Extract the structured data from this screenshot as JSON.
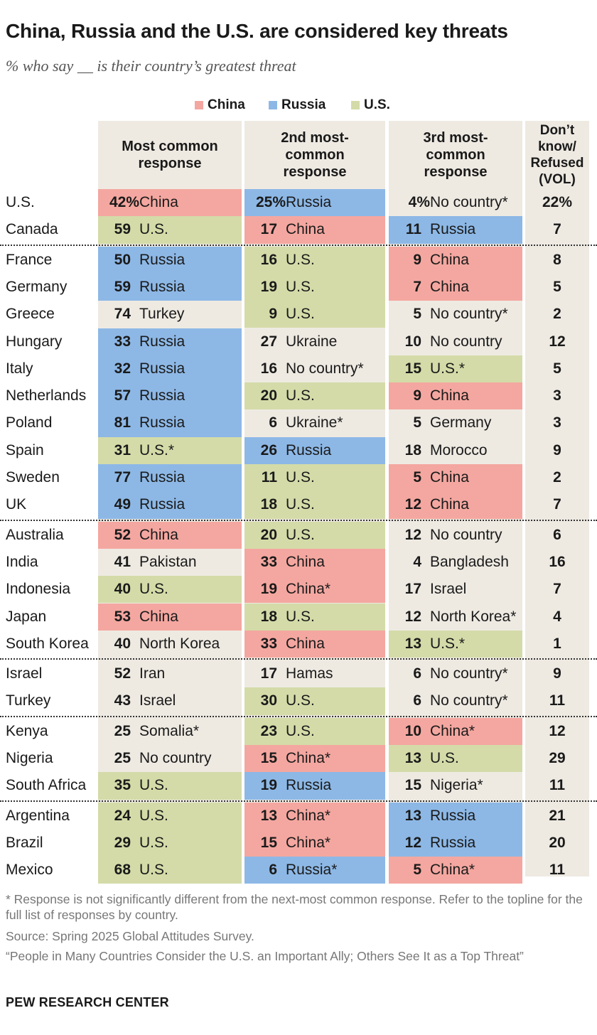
{
  "header": {
    "title": "China, Russia and the U.S. are considered key threats",
    "subtitle": "% who say __ is their country’s greatest threat"
  },
  "legend": [
    {
      "label": "China",
      "color": "#f4a7a0"
    },
    {
      "label": "Russia",
      "color": "#8db8e6"
    },
    {
      "label": "U.S.",
      "color": "#d4dba8"
    }
  ],
  "colors": {
    "China": "#f4a7a0",
    "Russia": "#8db8e6",
    "U.S.": "#d4dba8",
    "neutral": "#eeeae2"
  },
  "chart_data": {
    "type": "table",
    "columns": [
      "Most common response",
      "2nd most-common response",
      "3rd most-common response",
      "Don’t know/ Refused (VOL)"
    ],
    "column_headers": [
      "Most common\nresponse",
      "2nd most-\ncommon\nresponse",
      "3rd most-\ncommon\nresponse",
      "Don’t\nknow/\nRefused\n(VOL)"
    ],
    "rows": [
      {
        "country": "U.S.",
        "r1": [
          "42%",
          "China"
        ],
        "r2": [
          "25%",
          "Russia"
        ],
        "r3": [
          "4%",
          "No country*"
        ],
        "dk": "22%"
      },
      {
        "country": "Canada",
        "r1": [
          "59",
          "U.S."
        ],
        "r2": [
          "17",
          "China"
        ],
        "r3": [
          "11",
          "Russia"
        ],
        "dk": "7"
      },
      {
        "country": "France",
        "r1": [
          "50",
          "Russia"
        ],
        "r2": [
          "16",
          "U.S."
        ],
        "r3": [
          "9",
          "China"
        ],
        "dk": "8"
      },
      {
        "country": "Germany",
        "r1": [
          "59",
          "Russia"
        ],
        "r2": [
          "19",
          "U.S."
        ],
        "r3": [
          "7",
          "China"
        ],
        "dk": "5"
      },
      {
        "country": "Greece",
        "r1": [
          "74",
          "Turkey"
        ],
        "r2": [
          "9",
          "U.S."
        ],
        "r3": [
          "5",
          "No country*"
        ],
        "dk": "2"
      },
      {
        "country": "Hungary",
        "r1": [
          "33",
          "Russia"
        ],
        "r2": [
          "27",
          "Ukraine"
        ],
        "r3": [
          "10",
          "No country"
        ],
        "dk": "12"
      },
      {
        "country": "Italy",
        "r1": [
          "32",
          "Russia"
        ],
        "r2": [
          "16",
          "No country*"
        ],
        "r3": [
          "15",
          "U.S.*"
        ],
        "dk": "5"
      },
      {
        "country": "Netherlands",
        "r1": [
          "57",
          "Russia"
        ],
        "r2": [
          "20",
          "U.S."
        ],
        "r3": [
          "9",
          "China"
        ],
        "dk": "3"
      },
      {
        "country": "Poland",
        "r1": [
          "81",
          "Russia"
        ],
        "r2": [
          "6",
          "Ukraine*"
        ],
        "r3": [
          "5",
          "Germany"
        ],
        "dk": "3"
      },
      {
        "country": "Spain",
        "r1": [
          "31",
          "U.S.*"
        ],
        "r2": [
          "26",
          "Russia"
        ],
        "r3": [
          "18",
          "Morocco"
        ],
        "dk": "9"
      },
      {
        "country": "Sweden",
        "r1": [
          "77",
          "Russia"
        ],
        "r2": [
          "11",
          "U.S."
        ],
        "r3": [
          "5",
          "China"
        ],
        "dk": "2"
      },
      {
        "country": "UK",
        "r1": [
          "49",
          "Russia"
        ],
        "r2": [
          "18",
          "U.S."
        ],
        "r3": [
          "12",
          "China"
        ],
        "dk": "7"
      },
      {
        "country": "Australia",
        "r1": [
          "52",
          "China"
        ],
        "r2": [
          "20",
          "U.S."
        ],
        "r3": [
          "12",
          "No country"
        ],
        "dk": "6"
      },
      {
        "country": "India",
        "r1": [
          "41",
          "Pakistan"
        ],
        "r2": [
          "33",
          "China"
        ],
        "r3": [
          "4",
          "Bangladesh"
        ],
        "dk": "16"
      },
      {
        "country": "Indonesia",
        "r1": [
          "40",
          "U.S."
        ],
        "r2": [
          "19",
          "China*"
        ],
        "r3": [
          "17",
          "Israel"
        ],
        "dk": "7"
      },
      {
        "country": "Japan",
        "r1": [
          "53",
          "China"
        ],
        "r2": [
          "18",
          "U.S."
        ],
        "r3": [
          "12",
          "North Korea*"
        ],
        "dk": "4"
      },
      {
        "country": "South Korea",
        "r1": [
          "40",
          "North Korea"
        ],
        "r2": [
          "33",
          "China"
        ],
        "r3": [
          "13",
          "U.S.*"
        ],
        "dk": "1"
      },
      {
        "country": "Israel",
        "r1": [
          "52",
          "Iran"
        ],
        "r2": [
          "17",
          "Hamas"
        ],
        "r3": [
          "6",
          "No country*"
        ],
        "dk": "9"
      },
      {
        "country": "Turkey",
        "r1": [
          "43",
          "Israel"
        ],
        "r2": [
          "30",
          "U.S."
        ],
        "r3": [
          "6",
          "No country*"
        ],
        "dk": "11"
      },
      {
        "country": "Kenya",
        "r1": [
          "25",
          "Somalia*"
        ],
        "r2": [
          "23",
          "U.S."
        ],
        "r3": [
          "10",
          "China*"
        ],
        "dk": "12"
      },
      {
        "country": "Nigeria",
        "r1": [
          "25",
          "No country"
        ],
        "r2": [
          "15",
          "China*"
        ],
        "r3": [
          "13",
          "U.S."
        ],
        "dk": "29"
      },
      {
        "country": "South Africa",
        "r1": [
          "35",
          "U.S."
        ],
        "r2": [
          "19",
          "Russia"
        ],
        "r3": [
          "15",
          "Nigeria*"
        ],
        "dk": "11"
      },
      {
        "country": "Argentina",
        "r1": [
          "24",
          "U.S."
        ],
        "r2": [
          "13",
          "China*"
        ],
        "r3": [
          "13",
          "Russia"
        ],
        "dk": "21"
      },
      {
        "country": "Brazil",
        "r1": [
          "29",
          "U.S."
        ],
        "r2": [
          "15",
          "China*"
        ],
        "r3": [
          "12",
          "Russia"
        ],
        "dk": "20"
      },
      {
        "country": "Mexico",
        "r1": [
          "68",
          "U.S."
        ],
        "r2": [
          "6",
          "Russia*"
        ],
        "r3": [
          "5",
          "China*"
        ],
        "dk": "11"
      }
    ]
  },
  "footnotes": {
    "note": "* Response is not significantly different from the next-most common response. Refer to the topline for the full list of responses by country.",
    "source": "Source: Spring 2025 Global Attitudes Survey.",
    "report": "“People in Many Countries Consider the U.S. an Important Ally; Others See It as a Top Threat”",
    "brand": "PEW RESEARCH CENTER"
  }
}
